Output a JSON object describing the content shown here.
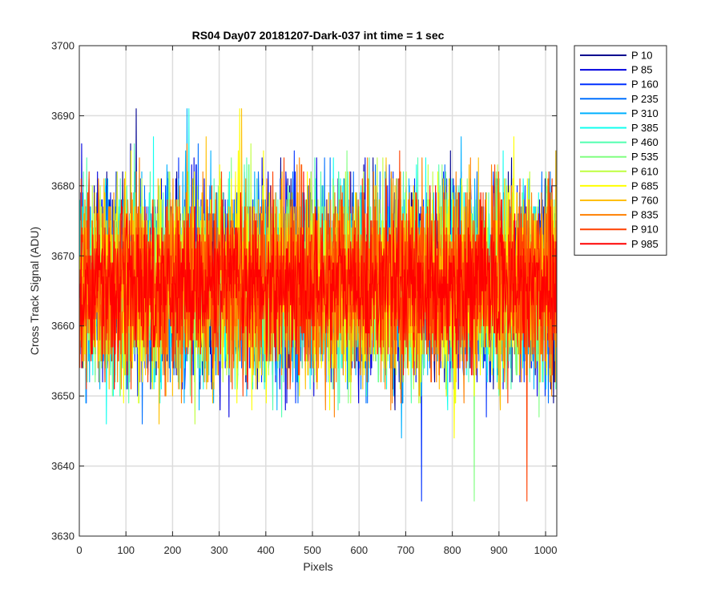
{
  "chart_data": {
    "type": "line",
    "title": "RS04 Day07 20181207-Dark-037 int time = 1 sec",
    "xlabel": "Pixels",
    "ylabel": "Cross Track Signal (ADU)",
    "xlim": [
      0,
      1024
    ],
    "ylim": [
      3630,
      3700
    ],
    "xticks": [
      0,
      100,
      200,
      300,
      400,
      500,
      600,
      700,
      800,
      900,
      1000
    ],
    "yticks": [
      3630,
      3640,
      3650,
      3660,
      3670,
      3680,
      3690,
      3700
    ],
    "grid": true,
    "legend_position": "outside-top-right",
    "x_range": [
      1,
      1024
    ],
    "series": [
      {
        "name": "P 10",
        "color": "#00008F",
        "mean": 3666,
        "noise_sd": 6.5
      },
      {
        "name": "P 85",
        "color": "#0000DF",
        "mean": 3666,
        "noise_sd": 6.5
      },
      {
        "name": "P 160",
        "color": "#0030FF",
        "mean": 3666,
        "noise_sd": 6.5
      },
      {
        "name": "P 235",
        "color": "#0070FF",
        "mean": 3666,
        "noise_sd": 6.5
      },
      {
        "name": "P 310",
        "color": "#00B0FF",
        "mean": 3666,
        "noise_sd": 6.5
      },
      {
        "name": "P 385",
        "color": "#10FFEF",
        "mean": 3666,
        "noise_sd": 6.5
      },
      {
        "name": "P 460",
        "color": "#50FFAF",
        "mean": 3666,
        "noise_sd": 6.5
      },
      {
        "name": "P 535",
        "color": "#80FF80",
        "mean": 3666,
        "noise_sd": 6.5
      },
      {
        "name": "P 610",
        "color": "#BFFF40",
        "mean": 3666,
        "noise_sd": 6.5
      },
      {
        "name": "P 685",
        "color": "#FFFF00",
        "mean": 3666,
        "noise_sd": 6.5
      },
      {
        "name": "P 760",
        "color": "#FFBF00",
        "mean": 3666,
        "noise_sd": 6.5
      },
      {
        "name": "P 835",
        "color": "#FF8000",
        "mean": 3666,
        "noise_sd": 6.5
      },
      {
        "name": "P 910",
        "color": "#FF4000",
        "mean": 3666,
        "noise_sd": 6.5
      },
      {
        "name": "P 985",
        "color": "#FF0000",
        "mean": 3666,
        "noise_sd": 5.0
      }
    ]
  }
}
